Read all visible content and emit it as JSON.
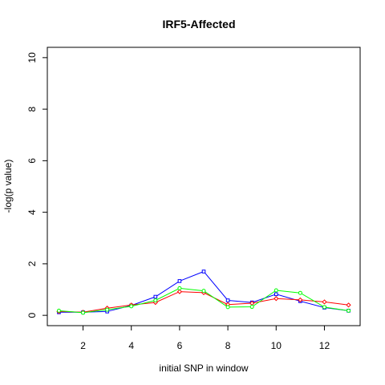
{
  "chart_data": {
    "type": "line",
    "title": "IRF5-Affected",
    "xlabel": "initial SNP in window",
    "ylabel": "-log(p value)",
    "xlim": [
      0.52,
      13.48
    ],
    "ylim": [
      -0.4,
      10.4
    ],
    "xticks": [
      2,
      4,
      6,
      8,
      10,
      12
    ],
    "yticks": [
      0,
      2,
      4,
      6,
      8,
      10
    ],
    "x": [
      1,
      2,
      3,
      4,
      5,
      6,
      7,
      8,
      9,
      10,
      11,
      12,
      13
    ],
    "series": [
      {
        "color": "#0000ff",
        "marker": "square",
        "values": [
          0.12,
          0.12,
          0.15,
          0.38,
          0.72,
          1.33,
          1.7,
          0.58,
          0.5,
          0.82,
          0.55,
          0.3,
          0.18
        ]
      },
      {
        "color": "#ff0000",
        "marker": "diamond",
        "values": [
          0.15,
          0.12,
          0.28,
          0.4,
          0.5,
          0.92,
          0.88,
          0.42,
          0.47,
          0.65,
          0.6,
          0.52,
          0.4
        ]
      },
      {
        "color": "#00ff00",
        "marker": "circle",
        "values": [
          0.18,
          0.1,
          0.22,
          0.35,
          0.58,
          1.05,
          0.95,
          0.32,
          0.33,
          0.97,
          0.87,
          0.32,
          0.18
        ]
      }
    ],
    "grid": false,
    "legend": "none"
  }
}
